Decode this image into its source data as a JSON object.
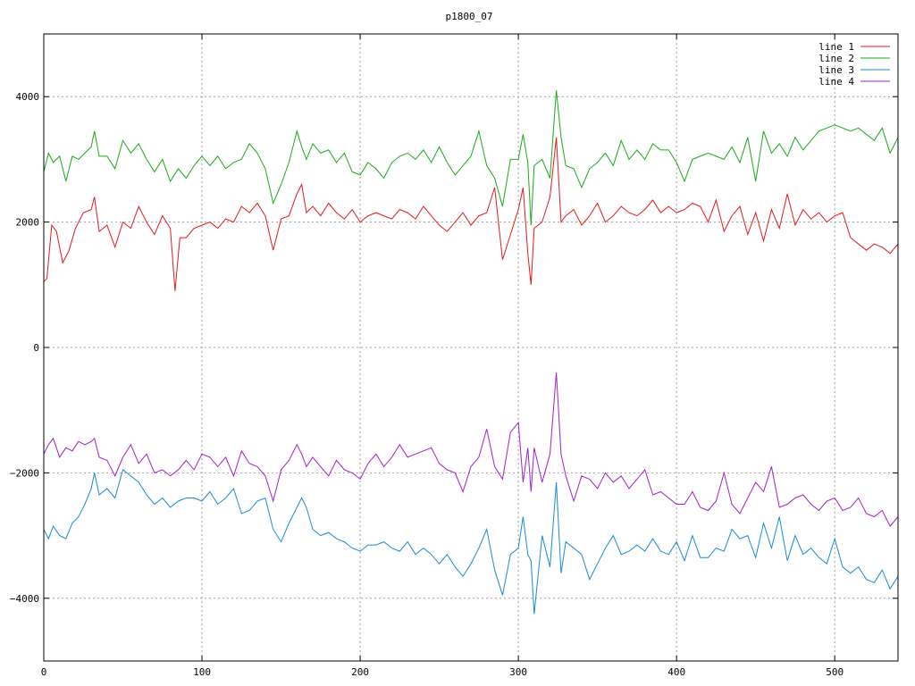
{
  "chart_data": {
    "type": "line",
    "title": "p1800_07",
    "xlim": [
      0,
      540
    ],
    "ylim": [
      -5000,
      5000
    ],
    "xticks": [
      0,
      100,
      200,
      300,
      400,
      500
    ],
    "yticks": [
      -4000,
      -2000,
      0,
      2000,
      4000
    ],
    "grid": true,
    "legend_position": "top-right",
    "series": [
      {
        "name": "line 1",
        "color": "#e41a1c",
        "x": [
          0,
          2,
          5,
          8,
          12,
          16,
          20,
          25,
          30,
          32,
          35,
          40,
          45,
          50,
          55,
          60,
          65,
          70,
          75,
          80,
          83,
          86,
          90,
          95,
          100,
          105,
          110,
          115,
          120,
          125,
          130,
          135,
          140,
          145,
          150,
          155,
          160,
          163,
          166,
          170,
          175,
          180,
          185,
          190,
          195,
          200,
          205,
          210,
          215,
          220,
          225,
          230,
          235,
          240,
          245,
          250,
          255,
          260,
          265,
          270,
          275,
          280,
          285,
          290,
          295,
          300,
          303,
          306,
          308,
          310,
          315,
          320,
          324,
          327,
          330,
          335,
          340,
          345,
          350,
          355,
          360,
          365,
          370,
          375,
          380,
          385,
          390,
          395,
          400,
          405,
          410,
          415,
          420,
          425,
          430,
          435,
          440,
          445,
          450,
          455,
          460,
          465,
          470,
          475,
          480,
          485,
          490,
          495,
          500,
          505,
          510,
          515,
          520,
          525,
          530,
          535,
          540
        ],
        "values": [
          1050,
          1100,
          1950,
          1850,
          1350,
          1550,
          1900,
          2150,
          2200,
          2400,
          1850,
          1950,
          1600,
          2000,
          1900,
          2250,
          2000,
          1800,
          2100,
          1900,
          900,
          1750,
          1750,
          1900,
          1950,
          2000,
          1900,
          2050,
          2000,
          2250,
          2150,
          2300,
          2100,
          1550,
          2050,
          2100,
          2450,
          2600,
          2150,
          2250,
          2100,
          2300,
          2150,
          2050,
          2200,
          2000,
          2100,
          2150,
          2100,
          2050,
          2200,
          2150,
          2050,
          2250,
          2100,
          1950,
          1850,
          2000,
          2150,
          1950,
          2100,
          2150,
          2550,
          1400,
          1800,
          2200,
          2550,
          1500,
          1000,
          1900,
          2000,
          2400,
          3350,
          2000,
          2100,
          2200,
          1950,
          2100,
          2300,
          2000,
          2100,
          2250,
          2150,
          2100,
          2200,
          2350,
          2150,
          2250,
          2150,
          2200,
          2300,
          2250,
          2000,
          2350,
          1850,
          2100,
          2250,
          1800,
          2150,
          1700,
          2200,
          1900,
          2450,
          1950,
          2200,
          2050,
          2150,
          2000,
          2100,
          2150,
          1750,
          1650,
          1550,
          1650,
          1600,
          1500,
          1650
        ]
      },
      {
        "name": "line 2",
        "color": "#1aa81a",
        "x": [
          0,
          3,
          6,
          10,
          14,
          18,
          22,
          26,
          30,
          32,
          35,
          40,
          45,
          50,
          55,
          60,
          65,
          70,
          75,
          80,
          85,
          90,
          95,
          100,
          105,
          110,
          115,
          120,
          125,
          130,
          135,
          140,
          145,
          150,
          155,
          160,
          163,
          166,
          170,
          175,
          180,
          185,
          190,
          195,
          200,
          205,
          210,
          215,
          220,
          225,
          230,
          235,
          240,
          245,
          250,
          255,
          260,
          265,
          270,
          275,
          280,
          285,
          290,
          295,
          300,
          303,
          306,
          308,
          310,
          315,
          320,
          324,
          327,
          330,
          335,
          340,
          345,
          350,
          355,
          360,
          365,
          370,
          375,
          380,
          385,
          390,
          395,
          400,
          405,
          410,
          415,
          420,
          425,
          430,
          435,
          440,
          445,
          450,
          455,
          460,
          465,
          470,
          475,
          480,
          485,
          490,
          495,
          500,
          505,
          510,
          515,
          520,
          525,
          530,
          535,
          540
        ],
        "values": [
          2800,
          3100,
          2950,
          3050,
          2650,
          3050,
          3000,
          3100,
          3200,
          3450,
          3050,
          3050,
          2850,
          3300,
          3100,
          3250,
          3000,
          2800,
          3000,
          2650,
          2850,
          2700,
          2900,
          3050,
          2900,
          3050,
          2850,
          2950,
          3000,
          3250,
          3100,
          2850,
          2300,
          2600,
          2950,
          3450,
          3200,
          3000,
          3250,
          3100,
          3150,
          2950,
          3100,
          2800,
          2750,
          2950,
          2850,
          2700,
          2950,
          3050,
          3100,
          3000,
          3150,
          2950,
          3200,
          2950,
          2750,
          2900,
          3050,
          3450,
          2900,
          2700,
          2250,
          3000,
          3000,
          3400,
          2950,
          1950,
          2900,
          3000,
          2700,
          4100,
          3350,
          2900,
          2850,
          2550,
          2850,
          2950,
          3100,
          2900,
          3300,
          3000,
          3150,
          3000,
          3250,
          3150,
          3150,
          2950,
          2650,
          3000,
          3050,
          3100,
          3050,
          3000,
          3200,
          2950,
          3350,
          2650,
          3450,
          3100,
          3250,
          3050,
          3350,
          3150,
          3300,
          3450,
          3500,
          3550,
          3500,
          3450,
          3500,
          3400,
          3300,
          3500,
          3100,
          3350
        ]
      },
      {
        "name": "line 3",
        "color": "#1a8ad4",
        "x": [
          0,
          3,
          6,
          10,
          14,
          18,
          22,
          26,
          30,
          32,
          35,
          40,
          45,
          50,
          55,
          60,
          65,
          70,
          75,
          80,
          85,
          90,
          95,
          100,
          105,
          110,
          115,
          120,
          125,
          130,
          135,
          140,
          145,
          150,
          155,
          160,
          163,
          166,
          170,
          175,
          180,
          185,
          190,
          195,
          200,
          205,
          210,
          215,
          220,
          225,
          230,
          235,
          240,
          245,
          250,
          255,
          260,
          265,
          270,
          275,
          280,
          285,
          290,
          295,
          300,
          303,
          306,
          308,
          310,
          315,
          320,
          324,
          327,
          330,
          335,
          340,
          345,
          350,
          355,
          360,
          365,
          370,
          375,
          380,
          385,
          390,
          395,
          400,
          405,
          410,
          415,
          420,
          425,
          430,
          435,
          440,
          445,
          450,
          455,
          460,
          465,
          470,
          475,
          480,
          485,
          490,
          495,
          500,
          505,
          510,
          515,
          520,
          525,
          530,
          535,
          540
        ],
        "values": [
          -2900,
          -3050,
          -2850,
          -3000,
          -3050,
          -2800,
          -2700,
          -2500,
          -2250,
          -2000,
          -2350,
          -2250,
          -2400,
          -1950,
          -2050,
          -2150,
          -2350,
          -2500,
          -2400,
          -2550,
          -2450,
          -2400,
          -2400,
          -2450,
          -2300,
          -2500,
          -2400,
          -2250,
          -2650,
          -2600,
          -2450,
          -2400,
          -2900,
          -3100,
          -2800,
          -2550,
          -2400,
          -2550,
          -2900,
          -3000,
          -2950,
          -3050,
          -3100,
          -3200,
          -3250,
          -3150,
          -3150,
          -3100,
          -3200,
          -3250,
          -3100,
          -3300,
          -3200,
          -3300,
          -3450,
          -3300,
          -3500,
          -3650,
          -3450,
          -3200,
          -2900,
          -3550,
          -3950,
          -3300,
          -3200,
          -2700,
          -3300,
          -3400,
          -4250,
          -3000,
          -3500,
          -2150,
          -3600,
          -3100,
          -3200,
          -3300,
          -3700,
          -3450,
          -3200,
          -3000,
          -3300,
          -3250,
          -3150,
          -3250,
          -3050,
          -3250,
          -3300,
          -3100,
          -3400,
          -3000,
          -3350,
          -3350,
          -3200,
          -3250,
          -2900,
          -3050,
          -3000,
          -3350,
          -2800,
          -3200,
          -2700,
          -3400,
          -3000,
          -3300,
          -3200,
          -3350,
          -3450,
          -3050,
          -3500,
          -3600,
          -3500,
          -3700,
          -3750,
          -3550,
          -3850,
          -3650
        ]
      },
      {
        "name": "line 4",
        "color": "#a020d0",
        "x": [
          0,
          3,
          6,
          10,
          14,
          18,
          22,
          26,
          30,
          32,
          35,
          40,
          45,
          50,
          55,
          60,
          65,
          70,
          75,
          80,
          85,
          90,
          95,
          100,
          105,
          110,
          115,
          120,
          125,
          130,
          135,
          140,
          145,
          150,
          155,
          160,
          163,
          166,
          170,
          175,
          180,
          185,
          190,
          195,
          200,
          205,
          210,
          215,
          220,
          225,
          230,
          235,
          240,
          245,
          250,
          255,
          260,
          265,
          270,
          275,
          280,
          285,
          290,
          295,
          300,
          303,
          306,
          308,
          310,
          315,
          320,
          324,
          327,
          330,
          335,
          340,
          345,
          350,
          355,
          360,
          365,
          370,
          375,
          380,
          385,
          390,
          395,
          400,
          405,
          410,
          415,
          420,
          425,
          430,
          435,
          440,
          445,
          450,
          455,
          460,
          465,
          470,
          475,
          480,
          485,
          490,
          495,
          500,
          505,
          510,
          515,
          520,
          525,
          530,
          535,
          540
        ],
        "values": [
          -1700,
          -1550,
          -1450,
          -1750,
          -1600,
          -1650,
          -1500,
          -1550,
          -1500,
          -1450,
          -1750,
          -1800,
          -2050,
          -1750,
          -1550,
          -1850,
          -1700,
          -2000,
          -1950,
          -2050,
          -1950,
          -1800,
          -1950,
          -1700,
          -1750,
          -1900,
          -1750,
          -2050,
          -1650,
          -1850,
          -1900,
          -2050,
          -2450,
          -1950,
          -1800,
          -1550,
          -1700,
          -1900,
          -1750,
          -1900,
          -2050,
          -1800,
          -1950,
          -2000,
          -2100,
          -1850,
          -1700,
          -1900,
          -1750,
          -1550,
          -1750,
          -1700,
          -1650,
          -1600,
          -1850,
          -1950,
          -2000,
          -2300,
          -1900,
          -1750,
          -1300,
          -1900,
          -2100,
          -1350,
          -1200,
          -2150,
          -1600,
          -2300,
          -1600,
          -2150,
          -1700,
          -400,
          -1700,
          -2050,
          -2450,
          -2050,
          -2100,
          -2250,
          -2000,
          -2150,
          -2050,
          -2250,
          -2100,
          -1950,
          -2350,
          -2300,
          -2400,
          -2500,
          -2500,
          -2300,
          -2550,
          -2600,
          -2450,
          -2000,
          -2500,
          -2650,
          -2400,
          -2150,
          -2300,
          -1900,
          -2550,
          -2500,
          -2400,
          -2350,
          -2500,
          -2600,
          -2450,
          -2400,
          -2600,
          -2550,
          -2400,
          -2650,
          -2700,
          -2600,
          -2850,
          -2700
        ]
      }
    ]
  }
}
